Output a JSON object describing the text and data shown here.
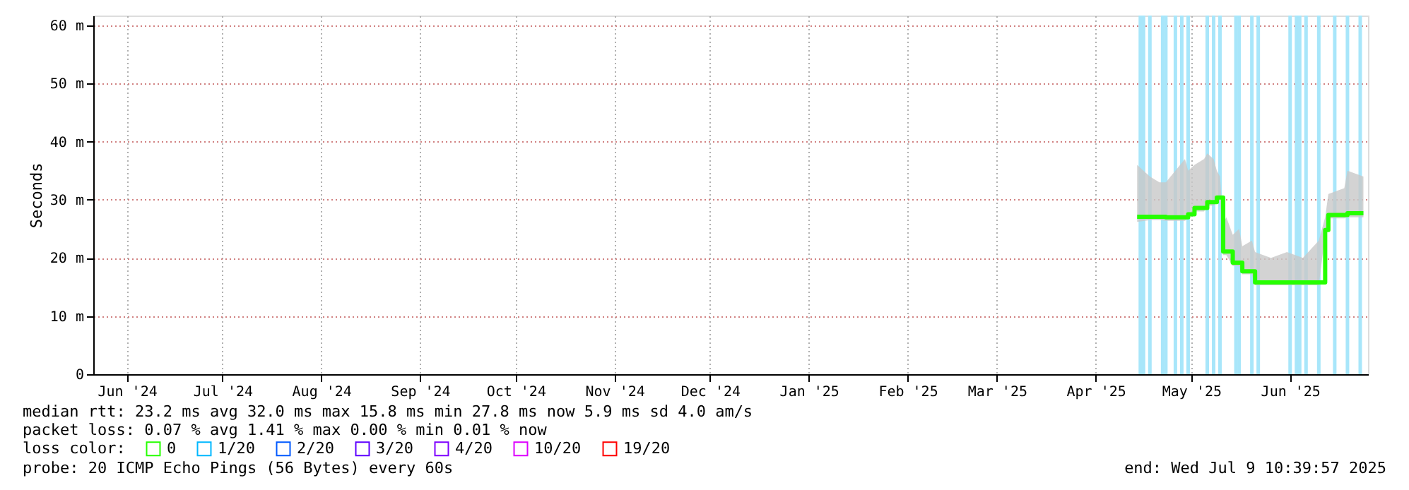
{
  "chart_data": {
    "type": "line",
    "ylabel": "Seconds",
    "xlim": [
      "2024-06-04T10:40",
      "2025-07-09T10:40"
    ],
    "ylim": [
      0,
      61.7
    ],
    "yticks": [
      0,
      {
        "value": 10,
        "label": "10 m"
      },
      {
        "value": 20,
        "label": "20 m"
      },
      {
        "value": 30,
        "label": "30 m"
      },
      {
        "value": 40,
        "label": "40 m"
      },
      {
        "value": 50,
        "label": "50 m"
      },
      {
        "value": 60,
        "label": "60 m"
      }
    ],
    "xticks": [
      {
        "value": "2024-06-15",
        "label": "Jun '24"
      },
      {
        "value": "2024-07-15",
        "label": "Jul '24"
      },
      {
        "value": "2024-08-15",
        "label": "Aug '24"
      },
      {
        "value": "2024-09-15",
        "label": "Sep '24"
      },
      {
        "value": "2024-10-15",
        "label": "Oct '24"
      },
      {
        "value": "2024-11-15",
        "label": "Nov '24"
      },
      {
        "value": "2024-12-15",
        "label": "Dec '24"
      },
      {
        "value": "2025-01-15",
        "label": "Jan '25"
      },
      {
        "value": "2025-02-15",
        "label": "Feb '25"
      },
      {
        "value": "2025-03-15",
        "label": "Mar '25"
      },
      {
        "value": "2025-04-15",
        "label": "Apr '25"
      },
      {
        "value": "2025-05-15",
        "label": "May '25"
      },
      {
        "value": "2025-06-15",
        "label": "Jun '25"
      }
    ],
    "x": [
      "2025-04-28",
      "2025-05-02",
      "2025-05-05",
      "2025-05-07",
      "2025-05-10",
      "2025-05-13",
      "2025-05-14",
      "2025-05-16",
      "2025-05-19",
      "2025-05-20",
      "2025-05-22",
      "2025-05-23",
      "2025-05-24",
      "2025-05-25",
      "2025-05-26",
      "2025-05-28",
      "2025-05-30",
      "2025-05-31",
      "2025-06-03",
      "2025-06-04",
      "2025-06-09",
      "2025-06-14",
      "2025-06-19",
      "2025-06-24",
      "2025-06-26",
      "2025-06-27",
      "2025-07-02",
      "2025-07-03",
      "2025-07-08"
    ],
    "series": [
      {
        "name": "0",
        "color": "#26ff00",
        "values": [
          27.1,
          27.1,
          27.1,
          27.0,
          27.0,
          27.0,
          27.5,
          28.6,
          28.6,
          29.6,
          29.6,
          30.4,
          30.4,
          21.1,
          21.1,
          19.2,
          19.2,
          17.7,
          17.7,
          15.8,
          15.8,
          15.8,
          15.8,
          15.8,
          24.8,
          27.4,
          27.4,
          27.7,
          27.7
        ],
        "lower": [
          26.2,
          26.5,
          26.5,
          26.4,
          26.4,
          26.4,
          26.8,
          28.0,
          28.0,
          29.0,
          29.0,
          29.8,
          29.8,
          20.5,
          20.5,
          18.6,
          18.6,
          17.2,
          17.2,
          15.3,
          15.3,
          15.3,
          15.3,
          15.3,
          24.0,
          26.8,
          26.8,
          27.0,
          27.0
        ],
        "upper": [
          36,
          34,
          33,
          33,
          35,
          37,
          35,
          36,
          37,
          38,
          37,
          35,
          34,
          26,
          27,
          24,
          25,
          22,
          23,
          21,
          20,
          21,
          20,
          23,
          27,
          31,
          32,
          35,
          34
        ]
      },
      {
        "name": "1/20",
        "color": "#00b8ff",
        "values": [
          null,
          null,
          null,
          null,
          null,
          null,
          null,
          null,
          null,
          null,
          null,
          null,
          null,
          null,
          null,
          null,
          null,
          null,
          null,
          null,
          null,
          null,
          null,
          null,
          null,
          null,
          null,
          null,
          null
        ]
      },
      {
        "name": "2/20",
        "color": "#0059ff",
        "values": [
          null,
          null,
          null,
          null,
          null,
          null,
          null,
          null,
          null,
          null,
          null,
          null,
          null,
          null,
          null,
          null,
          null,
          null,
          null,
          null,
          null,
          null,
          null,
          null,
          null,
          null,
          null,
          null,
          null
        ]
      },
      {
        "name": "3/20",
        "color": "#5e00ff",
        "values": [
          null,
          null,
          null,
          null,
          null,
          null,
          null,
          null,
          null,
          null,
          null,
          null,
          null,
          null,
          null,
          null,
          null,
          null,
          null,
          null,
          null,
          null,
          null,
          null,
          null,
          null,
          null,
          null,
          null
        ]
      },
      {
        "name": "4/20",
        "color": "#7e00ff",
        "values": [
          null,
          null,
          null,
          null,
          null,
          null,
          null,
          null,
          null,
          null,
          null,
          null,
          null,
          null,
          null,
          null,
          null,
          null,
          null,
          null,
          null,
          null,
          null,
          null,
          null,
          null,
          null,
          null,
          null
        ]
      },
      {
        "name": "10/20",
        "color": "#dd00ff",
        "values": [
          null,
          null,
          null,
          null,
          null,
          null,
          null,
          null,
          null,
          null,
          null,
          null,
          null,
          null,
          null,
          null,
          null,
          null,
          null,
          null,
          null,
          null,
          null,
          null,
          null,
          null,
          null,
          null,
          null
        ]
      },
      {
        "name": "19/20",
        "color": "#ff0000",
        "values": [
          null,
          null,
          null,
          null,
          null,
          null,
          null,
          null,
          null,
          null,
          null,
          null,
          null,
          null,
          null,
          null,
          null,
          null,
          null,
          null,
          null,
          null,
          null,
          null,
          null,
          null,
          null,
          null,
          null
        ]
      }
    ],
    "legend_title": "loss color:",
    "legend": "bottom",
    "grid": true,
    "marker": "none",
    "line_style": "solid",
    "ref_lines": [
      {
        "axis": "x",
        "value": "2025-04-29",
        "color": "#a8e6fa"
      },
      {
        "axis": "x",
        "value": "2025-04-30",
        "color": "#a8e6fa"
      },
      {
        "axis": "x",
        "value": "2025-05-02",
        "color": "#a8e6fa"
      },
      {
        "axis": "x",
        "value": "2025-05-06",
        "color": "#a8e6fa"
      },
      {
        "axis": "x",
        "value": "2025-05-07",
        "color": "#a8e6fa"
      },
      {
        "axis": "x",
        "value": "2025-05-10",
        "color": "#a8e6fa"
      },
      {
        "axis": "x",
        "value": "2025-05-12",
        "color": "#a8e6fa"
      },
      {
        "axis": "x",
        "value": "2025-05-14",
        "color": "#a8e6fa"
      },
      {
        "axis": "x",
        "value": "2025-05-20",
        "color": "#a8e6fa"
      },
      {
        "axis": "x",
        "value": "2025-05-22",
        "color": "#a8e6fa"
      },
      {
        "axis": "x",
        "value": "2025-05-24",
        "color": "#a8e6fa"
      },
      {
        "axis": "x",
        "value": "2025-05-29",
        "color": "#a8e6fa"
      },
      {
        "axis": "x",
        "value": "2025-05-30",
        "color": "#a8e6fa"
      },
      {
        "axis": "x",
        "value": "2025-06-03",
        "color": "#a8e6fa"
      },
      {
        "axis": "x",
        "value": "2025-06-05",
        "color": "#a8e6fa"
      },
      {
        "axis": "x",
        "value": "2025-06-15",
        "color": "#a8e6fa"
      },
      {
        "axis": "x",
        "value": "2025-06-17",
        "color": "#a8e6fa"
      },
      {
        "axis": "x",
        "value": "2025-06-18",
        "color": "#a8e6fa"
      },
      {
        "axis": "x",
        "value": "2025-06-20",
        "color": "#a8e6fa"
      },
      {
        "axis": "x",
        "value": "2025-06-24",
        "color": "#a8e6fa"
      },
      {
        "axis": "x",
        "value": "2025-06-29",
        "color": "#a8e6fa"
      },
      {
        "axis": "x",
        "value": "2025-07-03",
        "color": "#a8e6fa"
      },
      {
        "axis": "x",
        "value": "2025-07-07",
        "color": "#a8e6fa"
      }
    ],
    "annotations": [
      "median rtt:  23.2 ms avg  32.0 ms max  15.8 ms min  27.8 ms now  5.9 ms sd  4.0   am/s",
      "packet loss: 0.07 % avg  1.41 % max  0.00 % min  0.01 % now",
      "probe:       20 ICMP Echo Pings (56 Bytes) every 60s",
      "end: Wed Jul  9 10:39:57 2025"
    ]
  }
}
